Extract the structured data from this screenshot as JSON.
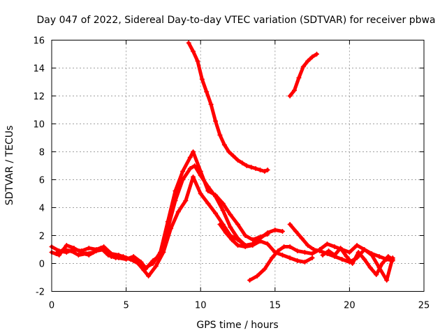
{
  "chart_data": {
    "type": "scatter",
    "title": "Day 047 of 2022, Sidereal Day-to-day VTEC variation (SDTVAR) for receiver pbwa",
    "xlabel": "GPS time / hours",
    "ylabel": "SDTVAR / TECUs",
    "xlim": [
      0,
      25
    ],
    "ylim": [
      -2,
      16
    ],
    "xticks": [
      0,
      5,
      10,
      15,
      20,
      25
    ],
    "yticks": [
      -2,
      0,
      2,
      4,
      6,
      8,
      10,
      12,
      14,
      16
    ],
    "grid": true,
    "marker": "+",
    "color": "#ff0000",
    "series": [
      {
        "name": "trace-a",
        "x": [
          0,
          0.5,
          1,
          1.5,
          2,
          2.5,
          3,
          3.5,
          4,
          4.5,
          5,
          5.5,
          6,
          6.3,
          6.8,
          7.3,
          7.8,
          8.3,
          8.8,
          9.3,
          9.6,
          10,
          10.5,
          11,
          11.5,
          12,
          12.5,
          13,
          13.5,
          14,
          14.5,
          15,
          15.5
        ],
        "y": [
          1.2,
          0.9,
          0.8,
          1.0,
          0.9,
          1.1,
          1.0,
          1.2,
          0.7,
          0.6,
          0.4,
          0.2,
          0.0,
          -0.4,
          0.2,
          0.6,
          2.5,
          4.5,
          6.0,
          6.8,
          7.0,
          6.3,
          5.5,
          4.8,
          3.8,
          2.6,
          1.8,
          1.3,
          1.4,
          1.8,
          2.2,
          2.4,
          2.3
        ]
      },
      {
        "name": "trace-b",
        "x": [
          0,
          0.5,
          1,
          1.5,
          2,
          2.5,
          3,
          3.5,
          4,
          4.5,
          5,
          5.5,
          6,
          6.3,
          6.8,
          7.3,
          7.8,
          8.3,
          8.8,
          9.3,
          9.5,
          10,
          10.5,
          11,
          11.5,
          12,
          12.5,
          13,
          13.5,
          14,
          14.5
        ],
        "y": [
          0.8,
          0.6,
          1.3,
          1.1,
          0.8,
          0.6,
          0.9,
          1.0,
          0.5,
          0.4,
          0.3,
          0.5,
          0.1,
          -0.3,
          0.0,
          0.8,
          3.0,
          5.2,
          6.6,
          7.6,
          8.0,
          6.6,
          5.2,
          4.9,
          4.3,
          3.5,
          2.8,
          2.0,
          1.7,
          1.9,
          2.1
        ]
      },
      {
        "name": "trace-c",
        "x": [
          0.3,
          0.8,
          1.3,
          1.8,
          2.3,
          2.8,
          3.3,
          3.8,
          4.3,
          4.8,
          5.3,
          5.8,
          6.2,
          6.5,
          7,
          7.5,
          8,
          8.5,
          9,
          9.5,
          10,
          10.5,
          11,
          11.5,
          12,
          12.5,
          13
        ],
        "y": [
          0.7,
          1.0,
          0.9,
          0.6,
          0.7,
          0.8,
          1.1,
          0.6,
          0.4,
          0.5,
          0.3,
          0.0,
          -0.5,
          -0.9,
          -0.2,
          0.8,
          2.5,
          3.7,
          4.5,
          6.2,
          5.0,
          4.3,
          3.6,
          2.8,
          2.0,
          1.7,
          1.3
        ]
      },
      {
        "name": "trace-d",
        "x": [
          9.2,
          9.5,
          9.8,
          10.1,
          10.4,
          10.7,
          11,
          11.3,
          11.6,
          11.9,
          12.2,
          12.5,
          12.8,
          13.1,
          13.4,
          13.7,
          14,
          14.3,
          14.5
        ],
        "y": [
          15.8,
          15.2,
          14.5,
          13.2,
          12.3,
          11.4,
          10.2,
          9.2,
          8.5,
          8.0,
          7.7,
          7.4,
          7.2,
          7.0,
          6.9,
          6.8,
          6.7,
          6.6,
          6.7
        ]
      },
      {
        "name": "trace-e",
        "x": [
          16.0,
          16.3,
          16.6,
          16.9,
          17.2,
          17.5,
          17.8
        ],
        "y": [
          12.0,
          12.4,
          13.3,
          14.1,
          14.5,
          14.8,
          15.0
        ]
      },
      {
        "name": "trace-f",
        "x": [
          11.3,
          11.7,
          12.1,
          12.5,
          13,
          13.5,
          14,
          14.5,
          15,
          15.5,
          16,
          16.5,
          17,
          17.5
        ],
        "y": [
          2.8,
          2.2,
          1.7,
          1.3,
          1.2,
          1.3,
          1.6,
          1.4,
          0.8,
          0.6,
          0.4,
          0.2,
          0.1,
          0.4
        ]
      },
      {
        "name": "trace-g",
        "x": [
          13.3,
          13.8,
          14.3,
          14.8,
          15.2,
          15.6,
          16,
          16.5,
          17,
          17.5,
          18,
          18.5,
          19,
          19.5,
          20,
          20.5,
          21,
          21.5,
          22,
          22.5,
          22.9
        ],
        "y": [
          -1.2,
          -0.9,
          -0.4,
          0.4,
          0.9,
          1.2,
          1.2,
          0.9,
          0.8,
          0.7,
          1.0,
          1.4,
          1.2,
          1.0,
          0.8,
          1.3,
          1.0,
          0.7,
          0.5,
          0.3,
          0.2
        ]
      },
      {
        "name": "trace-h",
        "x": [
          16.0,
          16.4,
          16.8,
          17.2,
          17.6,
          18,
          18.5,
          19,
          19.5,
          20,
          20.5,
          21,
          21.5,
          22,
          22.5,
          22.9
        ],
        "y": [
          2.8,
          2.3,
          1.8,
          1.3,
          1.0,
          0.9,
          0.7,
          0.5,
          0.3,
          0.1,
          0.4,
          1.0,
          0.6,
          -0.3,
          -1.2,
          0.4
        ]
      },
      {
        "name": "trace-i",
        "x": [
          18.2,
          18.6,
          19,
          19.4,
          19.8,
          20.2,
          20.6,
          21,
          21.4,
          21.8,
          22.2,
          22.6,
          22.9
        ],
        "y": [
          0.6,
          0.9,
          0.6,
          1.1,
          0.5,
          0.0,
          0.8,
          0.3,
          -0.3,
          -0.8,
          0.0,
          0.5,
          0.3
        ]
      }
    ]
  }
}
